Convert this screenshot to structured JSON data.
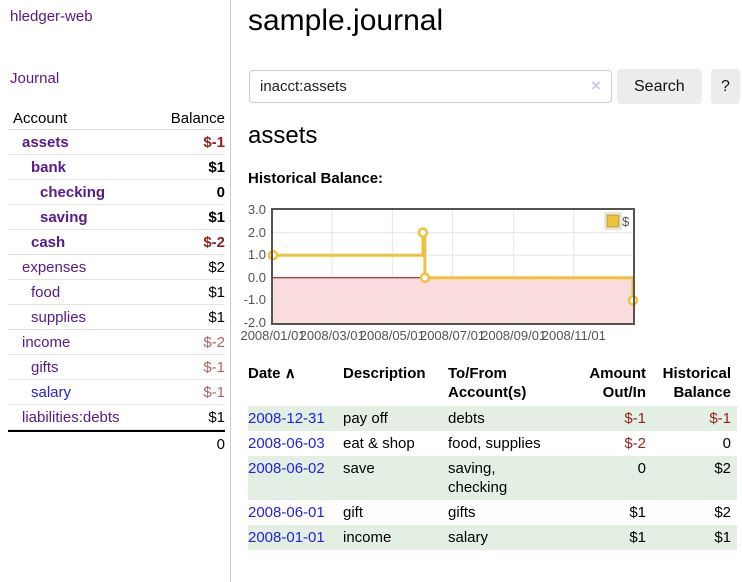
{
  "sidebar": {
    "brand": "hledger-web",
    "journal_link": "Journal",
    "accounts_table": {
      "headers": {
        "account": "Account",
        "balance": "Balance"
      },
      "rows": [
        {
          "name": "assets",
          "balance": "$-1",
          "indent": 1,
          "bold": true,
          "value_style": "neg-strong",
          "link_color": "purple"
        },
        {
          "name": "bank",
          "balance": "$1",
          "indent": 2,
          "bold": true,
          "value_style": "pos",
          "link_color": "purple"
        },
        {
          "name": "checking",
          "balance": "0",
          "indent": 3,
          "bold": true,
          "value_style": "pos",
          "link_color": "purple"
        },
        {
          "name": "saving",
          "balance": "$1",
          "indent": 3,
          "bold": true,
          "value_style": "pos",
          "link_color": "purple"
        },
        {
          "name": "cash",
          "balance": "$-2",
          "indent": 2,
          "bold": true,
          "value_style": "neg-strong",
          "link_color": "purple"
        },
        {
          "name": "expenses",
          "balance": "$2",
          "indent": 1,
          "bold": false,
          "value_style": "pos",
          "link_color": "purple"
        },
        {
          "name": "food",
          "balance": "$1",
          "indent": 2,
          "bold": false,
          "value_style": "pos",
          "link_color": "purple"
        },
        {
          "name": "supplies",
          "balance": "$1",
          "indent": 2,
          "bold": false,
          "value_style": "pos",
          "link_color": "purple"
        },
        {
          "name": "income",
          "balance": "$-2",
          "indent": 1,
          "bold": false,
          "value_style": "neg-soft",
          "link_color": "purple"
        },
        {
          "name": "gifts",
          "balance": "$-1",
          "indent": 2,
          "bold": false,
          "value_style": "neg-soft",
          "link_color": "purple"
        },
        {
          "name": "salary",
          "balance": "$-1",
          "indent": 2,
          "bold": false,
          "value_style": "neg-soft",
          "link_color": "blue"
        },
        {
          "name": "liabilities:debts",
          "balance": "$1",
          "indent": 1,
          "bold": false,
          "value_style": "pos",
          "link_color": "purple"
        }
      ],
      "total": "0"
    }
  },
  "header": {
    "title": "sample.journal"
  },
  "search": {
    "value": "inacct:assets",
    "clear_icon": "×",
    "button_label": "Search",
    "help_label": "?"
  },
  "account_page": {
    "heading": "assets",
    "chart_label": "Historical Balance:"
  },
  "chart_data": {
    "type": "line",
    "title": "Historical Balance",
    "step": true,
    "x_domain": [
      "2008-01-01",
      "2008-12-31"
    ],
    "x_ticks": [
      "2008/01/01",
      "2008/03/01",
      "2008/05/01",
      "2008/07/01",
      "2008/09/01",
      "2008/11/01"
    ],
    "y_ticks": [
      "3.0",
      "2.0",
      "1.0",
      "0.0",
      "-1.0",
      "-2.0"
    ],
    "ylim": [
      -2,
      3
    ],
    "grid": true,
    "legend_position": "top-right",
    "series": [
      {
        "name": "$",
        "color": "#EDC240",
        "points": [
          {
            "date": "2008-01-01",
            "value": 1
          },
          {
            "date": "2008-06-01",
            "value": 2
          },
          {
            "date": "2008-06-03",
            "value": 0
          },
          {
            "date": "2008-12-31",
            "value": -1
          }
        ]
      }
    ],
    "colors": {
      "negative_region": "#fbdcdc",
      "zero_line": "#8b0000",
      "gridline": "#e6e6e6",
      "border": "#545454",
      "tick_text": "#545454",
      "legend_box_border": "#b89530"
    }
  },
  "register_table": {
    "headers": {
      "date": "Date",
      "sort_icon": "∧",
      "description": "Description",
      "tofrom_lines": [
        "To/From",
        "Account(s)"
      ],
      "amount_lines": [
        "Amount",
        "Out/In"
      ],
      "historical_lines": [
        "Historical",
        "Balance"
      ]
    },
    "rows": [
      {
        "date": "2008-12-31",
        "description": "pay off",
        "accounts": [
          "debts"
        ],
        "amount": "$-1",
        "amount_neg": true,
        "balance": "$-1",
        "balance_neg": true,
        "shade": true
      },
      {
        "date": "2008-06-03",
        "description": "eat & shop",
        "accounts": [
          "food, supplies"
        ],
        "amount": "$-2",
        "amount_neg": true,
        "balance": "0",
        "balance_neg": false,
        "shade": false
      },
      {
        "date": "2008-06-02",
        "description": "save",
        "accounts": [
          "saving,",
          "checking"
        ],
        "amount": "0",
        "amount_neg": false,
        "balance": "$2",
        "balance_neg": false,
        "shade": true
      },
      {
        "date": "2008-06-01",
        "description": "gift",
        "accounts": [
          "gifts"
        ],
        "amount": "$1",
        "amount_neg": false,
        "balance": "$2",
        "balance_neg": false,
        "shade": false
      },
      {
        "date": "2008-01-01",
        "description": "income",
        "accounts": [
          "salary"
        ],
        "amount": "$1",
        "amount_neg": false,
        "balance": "$1",
        "balance_neg": false,
        "shade": true
      }
    ]
  }
}
